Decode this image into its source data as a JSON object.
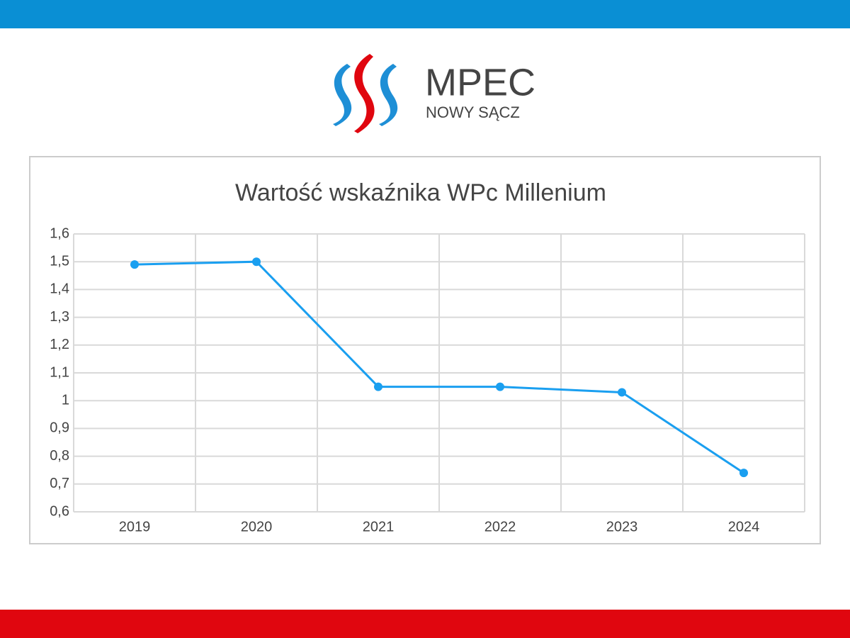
{
  "logo": {
    "name": "MPEC",
    "subtitle": "NOWY SĄCZ"
  },
  "chart_data": {
    "type": "line",
    "title": "Wartość wskaźnika WPc Millenium",
    "categories": [
      "2019",
      "2020",
      "2021",
      "2022",
      "2023",
      "2024"
    ],
    "values": [
      1.49,
      1.5,
      1.05,
      1.05,
      1.03,
      0.74
    ],
    "color": "#1a9ff0",
    "ylim": [
      0.6,
      1.6
    ],
    "yticks": [
      {
        "value": 0.6,
        "label": "0,6"
      },
      {
        "value": 0.7,
        "label": "0,7"
      },
      {
        "value": 0.8,
        "label": "0,8"
      },
      {
        "value": 0.9,
        "label": "0,9"
      },
      1,
      {
        "value": 1.1,
        "label": "1,1"
      },
      {
        "value": 1.2,
        "label": "1,2"
      },
      {
        "value": 1.3,
        "label": "1,3"
      },
      {
        "value": 1.4,
        "label": "1,4"
      },
      {
        "value": 1.5,
        "label": "1,5"
      },
      {
        "value": 1.6,
        "label": "1,6"
      }
    ],
    "grid": true
  }
}
